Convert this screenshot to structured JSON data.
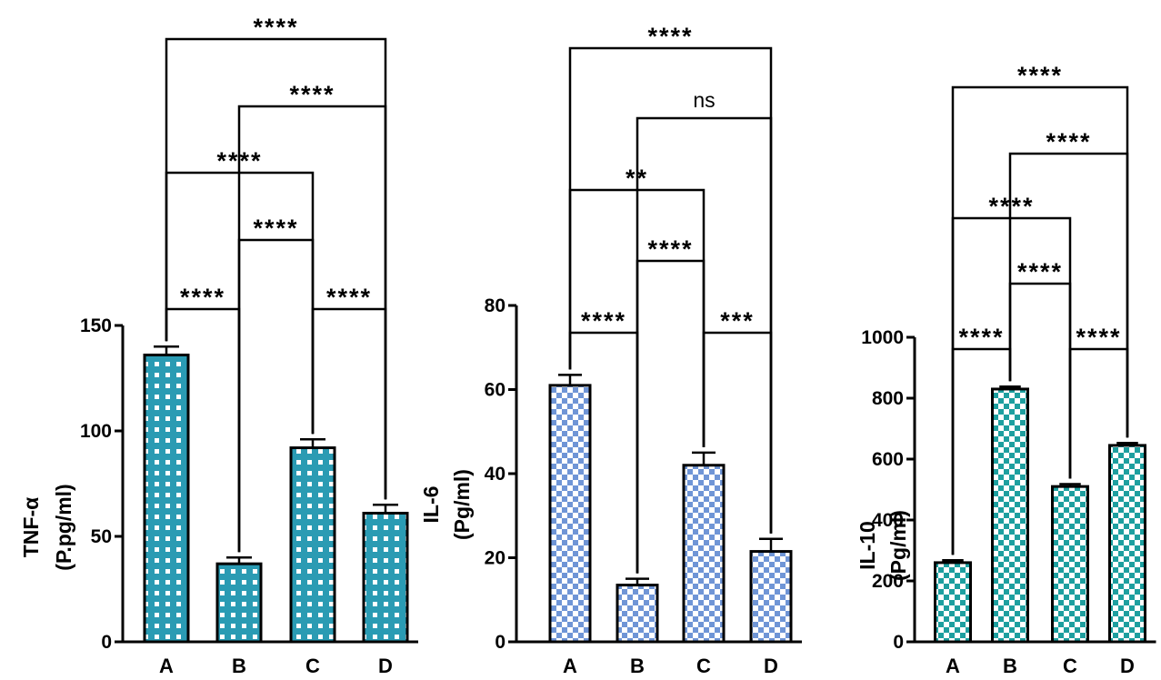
{
  "chart_data": [
    {
      "type": "bar",
      "ylabel_lines": [
        "TNF-α",
        "(P.pg/ml)"
      ],
      "categories": [
        "A",
        "B",
        "C",
        "D"
      ],
      "values": [
        136,
        37,
        92,
        61
      ],
      "errors": [
        4,
        3,
        4,
        4
      ],
      "ylim": [
        0,
        150
      ],
      "yticks": [
        0,
        50,
        100,
        150
      ],
      "bar_color": "#2a9bb3",
      "pattern": "grid",
      "comparisons": [
        {
          "pair": [
            "A",
            "B"
          ],
          "label": "****"
        },
        {
          "pair": [
            "C",
            "D"
          ],
          "label": "****"
        },
        {
          "pair": [
            "B",
            "C"
          ],
          "label": "****"
        },
        {
          "pair": [
            "A",
            "C"
          ],
          "label": "****"
        },
        {
          "pair": [
            "B",
            "D"
          ],
          "label": "****"
        },
        {
          "pair": [
            "A",
            "D"
          ],
          "label": "****"
        }
      ]
    },
    {
      "type": "bar",
      "ylabel_lines": [
        "IL-6",
        "(Pg/ml)"
      ],
      "categories": [
        "A",
        "B",
        "C",
        "D"
      ],
      "values": [
        61,
        13.5,
        42,
        21.5
      ],
      "errors": [
        2.5,
        1.5,
        3,
        3
      ],
      "ylim": [
        0,
        80
      ],
      "yticks": [
        0,
        20,
        40,
        60,
        80
      ],
      "bar_color": "#6f95d6",
      "pattern": "checker",
      "comparisons": [
        {
          "pair": [
            "A",
            "B"
          ],
          "label": "****"
        },
        {
          "pair": [
            "C",
            "D"
          ],
          "label": "***"
        },
        {
          "pair": [
            "B",
            "C"
          ],
          "label": "****"
        },
        {
          "pair": [
            "A",
            "C"
          ],
          "label": "**"
        },
        {
          "pair": [
            "B",
            "D"
          ],
          "label": "ns"
        },
        {
          "pair": [
            "A",
            "D"
          ],
          "label": "****"
        }
      ]
    },
    {
      "type": "bar",
      "ylabel_lines": [
        "IL-10",
        "(Pg/ml)"
      ],
      "categories": [
        "A",
        "B",
        "C",
        "D"
      ],
      "values": [
        260,
        830,
        510,
        645
      ],
      "errors": [
        8,
        8,
        8,
        8
      ],
      "ylim": [
        0,
        1000
      ],
      "yticks": [
        0,
        200,
        400,
        600,
        800,
        1000
      ],
      "bar_color": "#1d9f9f",
      "pattern": "checker",
      "comparisons": [
        {
          "pair": [
            "A",
            "B"
          ],
          "label": "****"
        },
        {
          "pair": [
            "C",
            "D"
          ],
          "label": "****"
        },
        {
          "pair": [
            "B",
            "C"
          ],
          "label": "****"
        },
        {
          "pair": [
            "A",
            "C"
          ],
          "label": "****"
        },
        {
          "pair": [
            "B",
            "D"
          ],
          "label": "****"
        },
        {
          "pair": [
            "A",
            "D"
          ],
          "label": "****"
        }
      ]
    }
  ]
}
